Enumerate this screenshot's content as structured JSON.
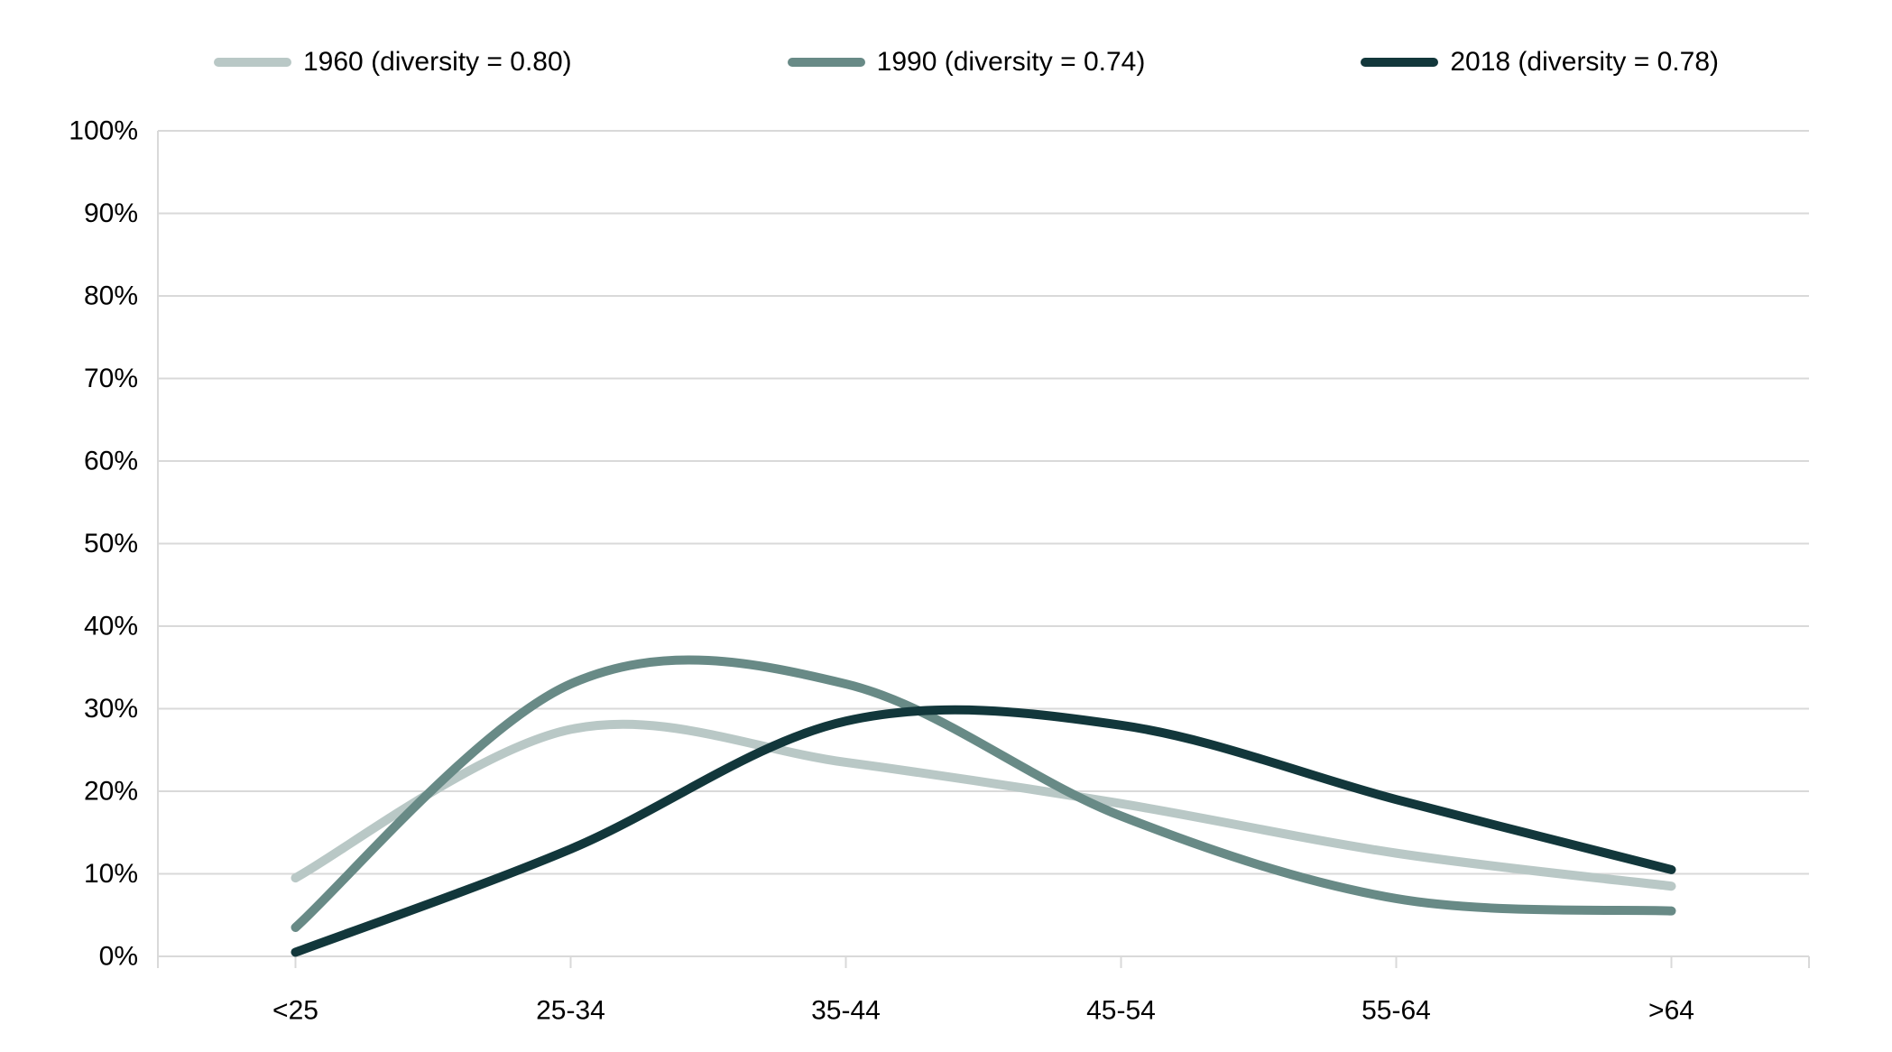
{
  "chart_data": {
    "type": "line",
    "title": "",
    "xlabel": "",
    "ylabel": "",
    "categories": [
      "<25",
      "25-34",
      "35-44",
      "45-54",
      "55-64",
      ">64"
    ],
    "series": [
      {
        "name": "1960 (diversity = 0.80)",
        "color": "#b9c8c6",
        "values": [
          9.5,
          27.5,
          23.5,
          18.5,
          12.5,
          8.5
        ]
      },
      {
        "name": "1990 (diversity = 0.74)",
        "color": "#688a86",
        "values": [
          3.5,
          33,
          33,
          17,
          7,
          5.5
        ]
      },
      {
        "name": "2018 (diversity = 0.78)",
        "color": "#12373b",
        "values": [
          0.5,
          13,
          28.5,
          28,
          19,
          10.5
        ]
      }
    ],
    "ylim": [
      0,
      100
    ],
    "ytick_labels": [
      "0%",
      "10%",
      "20%",
      "30%",
      "40%",
      "50%",
      "60%",
      "70%",
      "80%",
      "90%",
      "100%"
    ],
    "grid": "horizontal",
    "legend_position": "top",
    "smooth": true,
    "line_width": 10,
    "axis_color": "#d9d9d9",
    "text_color": "#000000",
    "background": "#ffffff"
  }
}
